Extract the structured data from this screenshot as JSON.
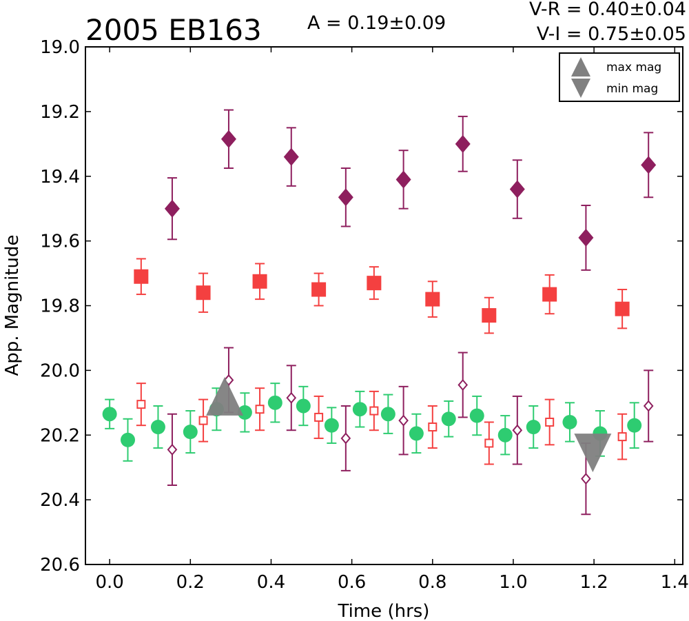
{
  "chart_data": {
    "type": "scatter",
    "title": "2005 EB163",
    "annotations": {
      "amplitude": "A  = 0.19±0.09",
      "v_r": "V-R = 0.40±0.04",
      "v_i": "V-I  = 0.75±0.05"
    },
    "xlabel": "Time (hrs)",
    "ylabel": "App. Magnitude",
    "xlim": [
      -0.06,
      1.42
    ],
    "ylim": [
      20.6,
      19.0
    ],
    "y_inverted": true,
    "xticks": [
      "0.0",
      "0.2",
      "0.4",
      "0.6",
      "0.8",
      "1.0",
      "1.2",
      "1.4"
    ],
    "yticks": [
      "19.0",
      "19.2",
      "19.4",
      "19.6",
      "19.8",
      "20.0",
      "20.2",
      "20.4",
      "20.6"
    ],
    "grid": false,
    "legend": {
      "placement": "top-right",
      "entries": [
        {
          "label": "max mag",
          "marker": "triangle-up",
          "color": "#808080"
        },
        {
          "label": "min mag",
          "marker": "triangle-down",
          "color": "#808080"
        }
      ]
    },
    "series": [
      {
        "marker": "circle-filled",
        "color": "#2ecc71",
        "x": [
          0.0,
          0.045,
          0.12,
          0.2,
          0.265,
          0.335,
          0.41,
          0.48,
          0.55,
          0.62,
          0.69,
          0.76,
          0.84,
          0.91,
          0.98,
          1.05,
          1.14,
          1.215,
          1.3
        ],
        "y": [
          20.135,
          20.215,
          20.175,
          20.19,
          20.12,
          20.13,
          20.1,
          20.11,
          20.17,
          20.12,
          20.135,
          20.195,
          20.15,
          20.14,
          20.2,
          20.175,
          20.16,
          20.195,
          20.17
        ],
        "err": [
          0.045,
          0.065,
          0.065,
          0.065,
          0.065,
          0.06,
          0.06,
          0.06,
          0.055,
          0.055,
          0.06,
          0.06,
          0.055,
          0.06,
          0.06,
          0.065,
          0.06,
          0.07,
          0.07
        ]
      },
      {
        "marker": "square-filled",
        "color": "#f44040",
        "x": [
          0.078,
          0.232,
          0.372,
          0.518,
          0.655,
          0.8,
          0.94,
          1.09,
          1.27
        ],
        "y": [
          19.71,
          19.76,
          19.725,
          19.75,
          19.73,
          19.78,
          19.83,
          19.765,
          19.81
        ],
        "err": [
          0.055,
          0.06,
          0.055,
          0.05,
          0.05,
          0.055,
          0.055,
          0.06,
          0.06
        ]
      },
      {
        "marker": "square-open",
        "color": "#f44040",
        "x": [
          0.078,
          0.232,
          0.372,
          0.518,
          0.655,
          0.8,
          0.94,
          1.09,
          1.27
        ],
        "y": [
          20.105,
          20.155,
          20.12,
          20.145,
          20.125,
          20.175,
          20.225,
          20.16,
          20.205
        ],
        "err": [
          0.065,
          0.065,
          0.065,
          0.065,
          0.06,
          0.065,
          0.065,
          0.07,
          0.07
        ]
      },
      {
        "marker": "diamond-filled",
        "color": "#8e1f5e",
        "x": [
          0.155,
          0.295,
          0.45,
          0.585,
          0.728,
          0.875,
          1.01,
          1.18,
          1.335
        ],
        "y": [
          19.5,
          19.285,
          19.34,
          19.465,
          19.41,
          19.3,
          19.44,
          19.59,
          19.365
        ],
        "err": [
          0.095,
          0.09,
          0.09,
          0.09,
          0.09,
          0.085,
          0.09,
          0.1,
          0.1
        ]
      },
      {
        "marker": "diamond-open",
        "color": "#8e1f5e",
        "x": [
          0.155,
          0.295,
          0.45,
          0.585,
          0.728,
          0.875,
          1.01,
          1.18,
          1.335
        ],
        "y": [
          20.245,
          20.03,
          20.085,
          20.21,
          20.155,
          20.045,
          20.185,
          20.335,
          20.11
        ],
        "err": [
          0.11,
          0.1,
          0.1,
          0.1,
          0.105,
          0.1,
          0.105,
          0.11,
          0.11
        ]
      }
    ],
    "extrema_markers": [
      {
        "label": "max mag",
        "marker": "triangle-up",
        "x": 0.285,
        "y": 20.08
      },
      {
        "label": "min mag",
        "marker": "triangle-down",
        "x": 1.197,
        "y": 20.255
      }
    ]
  }
}
